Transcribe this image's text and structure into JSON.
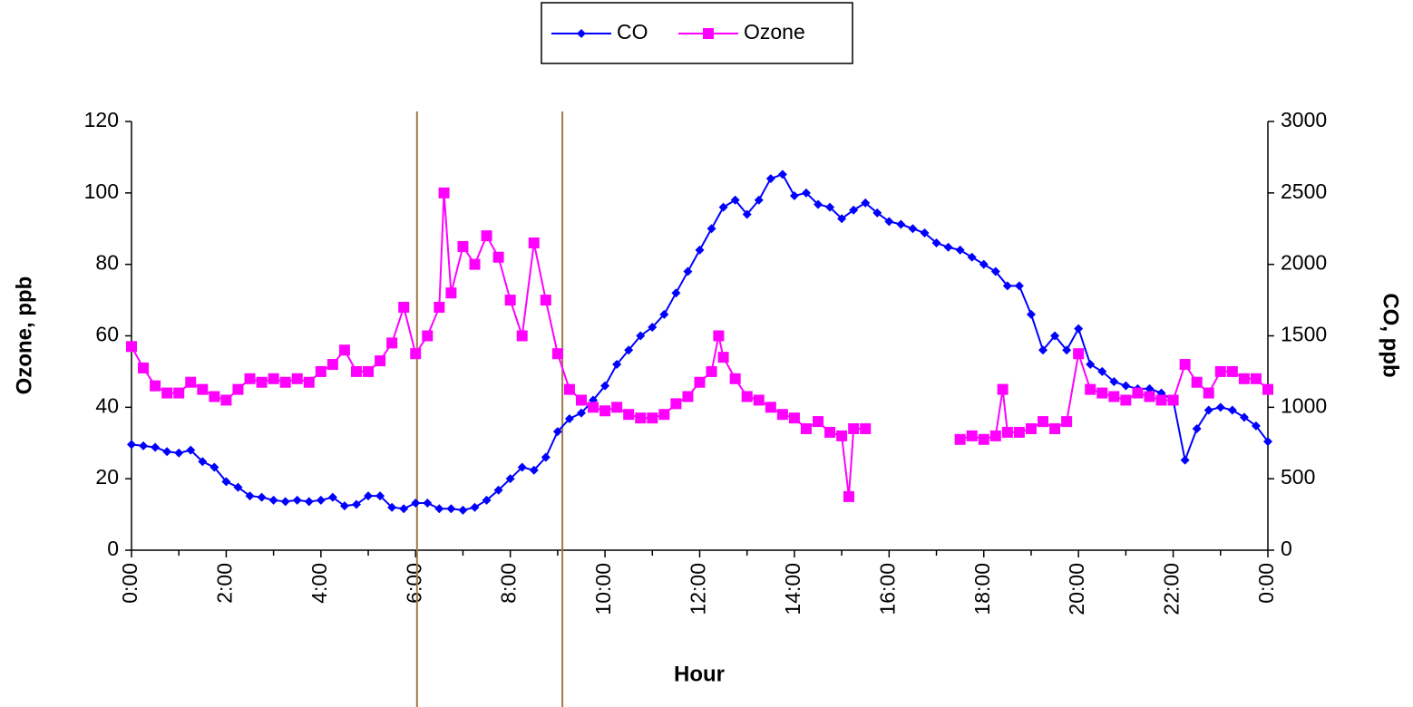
{
  "chart_data": {
    "type": "line",
    "xlabel": "Hour",
    "ylabel": "Ozone, ppb",
    "y2label": "CO, ppb",
    "xlim": [
      0,
      24
    ],
    "xticks": [
      {
        "value": 0,
        "label": "0:00"
      },
      {
        "value": 2,
        "label": "2:00"
      },
      {
        "value": 4,
        "label": "4:00"
      },
      {
        "value": 6,
        "label": "6:00"
      },
      {
        "value": 8,
        "label": "8:00"
      },
      {
        "value": 10,
        "label": "10:00"
      },
      {
        "value": 12,
        "label": "12:00"
      },
      {
        "value": 14,
        "label": "14:00"
      },
      {
        "value": 16,
        "label": "16:00"
      },
      {
        "value": 18,
        "label": "18:00"
      },
      {
        "value": 20,
        "label": "20:00"
      },
      {
        "value": 22,
        "label": "22:00"
      },
      {
        "value": 24,
        "label": "0:00"
      }
    ],
    "xminorticks": [
      1,
      3,
      5,
      7,
      9,
      11,
      13,
      15,
      17,
      19,
      21,
      23
    ],
    "ylim": [
      0,
      120
    ],
    "yticks": [
      0,
      20,
      40,
      60,
      80,
      100,
      120
    ],
    "y2lim": [
      0,
      3000
    ],
    "y2ticks": [
      0,
      500,
      1000,
      1500,
      2000,
      2500,
      3000
    ],
    "vlines": [
      6.03,
      9.1
    ],
    "vline_color": "#a07a4a",
    "legend": "top",
    "series": [
      {
        "name": "CO",
        "color": "#0000ff",
        "marker": "diamond",
        "axis": "y2",
        "x": [
          0,
          0.25,
          0.5,
          0.75,
          1,
          1.25,
          1.5,
          1.75,
          2,
          2.25,
          2.5,
          2.75,
          3,
          3.25,
          3.5,
          3.75,
          4,
          4.25,
          4.5,
          4.75,
          5,
          5.25,
          5.5,
          5.75,
          6,
          6.25,
          6.5,
          6.75,
          7,
          7.25,
          7.5,
          7.75,
          8,
          8.25,
          8.5,
          8.75,
          9,
          9.25,
          9.5,
          9.75,
          10,
          10.25,
          10.5,
          10.75,
          11,
          11.25,
          11.5,
          11.75,
          12,
          12.25,
          12.5,
          12.75,
          13,
          13.25,
          13.5,
          13.75,
          14,
          14.25,
          14.5,
          14.75,
          15,
          15.25,
          15.5,
          15.75,
          16,
          16.25,
          16.5,
          16.75,
          17,
          17.25,
          17.5,
          17.75,
          18,
          18.25,
          18.5,
          18.75,
          19,
          19.25,
          19.5,
          19.75,
          20,
          20.25,
          20.5,
          20.75,
          21,
          21.25,
          21.5,
          21.75,
          22,
          22.25,
          22.5,
          22.75,
          23,
          23.25,
          23.5,
          23.75,
          24
        ],
        "values": [
          740,
          730,
          720,
          690,
          680,
          700,
          620,
          580,
          480,
          440,
          380,
          370,
          350,
          340,
          350,
          340,
          350,
          370,
          310,
          320,
          380,
          380,
          300,
          290,
          330,
          330,
          290,
          290,
          280,
          300,
          350,
          420,
          500,
          580,
          560,
          650,
          830,
          920,
          960,
          1050,
          1150,
          1300,
          1400,
          1500,
          1560,
          1650,
          1800,
          1950,
          2100,
          2250,
          2400,
          2450,
          2350,
          2450,
          2600,
          2630,
          2480,
          2500,
          2420,
          2400,
          2320,
          2380,
          2430,
          2360,
          2300,
          2280,
          2250,
          2220,
          2150,
          2120,
          2100,
          2050,
          2000,
          1950,
          1850,
          1850,
          1650,
          1400,
          1500,
          1400,
          1550,
          1300,
          1250,
          1180,
          1150,
          1130,
          1130,
          1100,
          1050,
          630,
          850,
          980,
          1000,
          980,
          930,
          870,
          760
        ]
      },
      {
        "name": "Ozone",
        "color": "#ff00ff",
        "marker": "square",
        "axis": "y",
        "x": [
          0,
          0.25,
          0.5,
          0.75,
          1,
          1.25,
          1.5,
          1.75,
          2,
          2.25,
          2.5,
          2.75,
          3,
          3.25,
          3.5,
          3.75,
          4,
          4.25,
          4.5,
          4.75,
          5,
          5.25,
          5.5,
          5.75,
          6,
          6.25,
          6.5,
          6.6,
          6.75,
          7,
          7.25,
          7.5,
          7.75,
          8,
          8.25,
          8.5,
          8.75,
          9,
          9.25,
          9.5,
          9.75,
          10,
          10.25,
          10.5,
          10.75,
          11,
          11.25,
          11.5,
          11.75,
          12,
          12.25,
          12.4,
          12.5,
          12.75,
          13,
          13.25,
          13.5,
          13.75,
          14,
          14.25,
          14.5,
          14.75,
          15,
          15.15,
          15.25,
          15.5,
          16.5,
          17.5,
          17.75,
          18,
          18.25,
          18.4,
          18.5,
          18.75,
          19,
          19.25,
          19.5,
          19.75,
          20,
          20.25,
          20.5,
          20.75,
          21,
          21.25,
          21.5,
          21.75,
          22,
          22.25,
          22.5,
          22.75,
          23,
          23.25,
          23.5,
          23.75,
          24
        ],
        "values": [
          57,
          51,
          46,
          44,
          44,
          47,
          45,
          43,
          42,
          45,
          48,
          47,
          48,
          47,
          48,
          47,
          50,
          52,
          56,
          50,
          50,
          53,
          58,
          68,
          55,
          60,
          68,
          100,
          72,
          85,
          80,
          88,
          82,
          70,
          60,
          86,
          70,
          55,
          45,
          42,
          40,
          39,
          40,
          38,
          37,
          37,
          38,
          41,
          43,
          47,
          50,
          60,
          54,
          48,
          43,
          42,
          40,
          38,
          37,
          34,
          36,
          33,
          32,
          15,
          34,
          34,
          null,
          31,
          32,
          31,
          32,
          45,
          33,
          33,
          34,
          36,
          34,
          36,
          55,
          45,
          44,
          43,
          42,
          44,
          43,
          42,
          42,
          52,
          47,
          44,
          50,
          50,
          48,
          48,
          45
        ]
      }
    ]
  }
}
